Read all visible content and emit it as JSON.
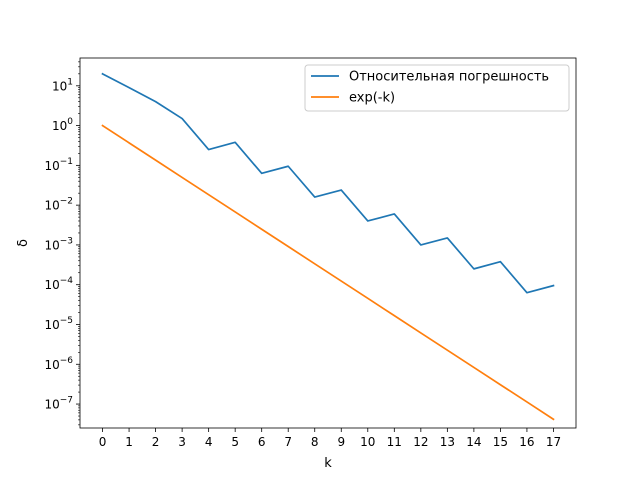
{
  "chart_data": {
    "type": "line",
    "xlabel": "k",
    "ylabel": "δ",
    "yscale": "log",
    "xlim": [
      -0.85,
      17.85
    ],
    "ylim": [
      2.5e-08,
      50
    ],
    "grid": false,
    "legend": "top-right",
    "x_ticks": [
      0,
      1,
      2,
      3,
      4,
      5,
      6,
      7,
      8,
      9,
      10,
      11,
      12,
      13,
      14,
      15,
      16,
      17
    ],
    "y_ticks": [
      {
        "exp": "-7",
        "value": 1e-07
      },
      {
        "exp": "-6",
        "value": 1e-06
      },
      {
        "exp": "-5",
        "value": 1e-05
      },
      {
        "exp": "-4",
        "value": 0.0001
      },
      {
        "exp": "-3",
        "value": 0.001
      },
      {
        "exp": "-2",
        "value": 0.01
      },
      {
        "exp": "-1",
        "value": 0.1
      },
      {
        "exp": "0",
        "value": 1
      },
      {
        "exp": "1",
        "value": 10
      }
    ],
    "tick_base": "10",
    "x": [
      0,
      1,
      2,
      3,
      4,
      5,
      6,
      7,
      8,
      9,
      10,
      11,
      12,
      13,
      14,
      15,
      16,
      17
    ],
    "series": [
      {
        "name": "Относительная погрешность",
        "color": "#1f77b4",
        "values": [
          20,
          9,
          4,
          1.5,
          0.25,
          0.38,
          0.063,
          0.095,
          0.016,
          0.024,
          0.004,
          0.006,
          0.001,
          0.0015,
          0.00025,
          0.00038,
          6.3e-05,
          9.5e-05
        ]
      },
      {
        "name": "exp(-k)",
        "color": "#ff7f0e",
        "values": [
          1,
          0.36788,
          0.13534,
          0.049787,
          0.018316,
          0.0067379,
          0.0024788,
          0.00091188,
          0.00033546,
          0.00012341,
          4.54e-05,
          1.67e-05,
          6.14e-06,
          2.26e-06,
          8.32e-07,
          3.06e-07,
          1.13e-07,
          4.14e-08
        ]
      }
    ]
  }
}
